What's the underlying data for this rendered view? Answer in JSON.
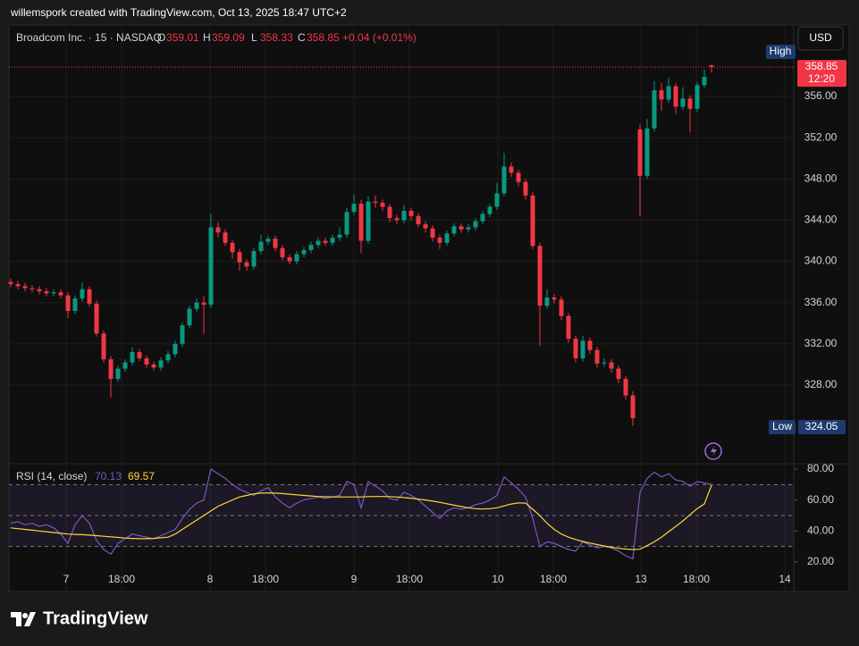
{
  "header": {
    "credit": "willemspork created with TradingView.com, Oct 13, 2025 18:47 UTC+2"
  },
  "footer": {
    "brand": "TradingView"
  },
  "chart_data": [
    {
      "type": "candlestick",
      "title": "Broadcom Inc. · 15 · NASDAQ",
      "ohlc_labels": [
        "O",
        "H",
        "L",
        "C"
      ],
      "change": "+0.04 (+0.01%)",
      "currency": "USD",
      "price_tag_time": "12:20",
      "high_label": "High",
      "low_label": "Low",
      "colors": {
        "up": "#089981",
        "down": "#f23645"
      },
      "grid": true,
      "xlim": [
        0,
        219.5
      ],
      "xticks": [
        {
          "value": 16,
          "label": "7"
        },
        {
          "value": 31.5,
          "label": "18:00"
        },
        {
          "value": 56.25,
          "label": "8"
        },
        {
          "value": 71.75,
          "label": "18:00"
        },
        {
          "value": 96.5,
          "label": "9"
        },
        {
          "value": 112,
          "label": "18:00"
        },
        {
          "value": 136.75,
          "label": "10"
        },
        {
          "value": 152.25,
          "label": "18:00"
        },
        {
          "value": 176.75,
          "label": "13"
        },
        {
          "value": 192.25,
          "label": "18:00"
        },
        {
          "value": 217,
          "label": "14"
        }
      ],
      "ylim": [
        320.46,
        362.93
      ],
      "yticks": [
        {
          "value": 328,
          "label": "328.00"
        },
        {
          "value": 332,
          "label": "332.00"
        },
        {
          "value": 336,
          "label": "336.00"
        },
        {
          "value": 340,
          "label": "340.00"
        },
        {
          "value": 344,
          "label": "344.00"
        },
        {
          "value": 348,
          "label": "348.00"
        },
        {
          "value": 352,
          "label": "352.00"
        },
        {
          "value": 356,
          "label": "356.00"
        }
      ],
      "x": [
        0.5,
        2.5,
        4.5,
        6.5,
        8.5,
        10.5,
        12.5,
        14.5,
        16.5,
        18.5,
        20.5,
        22.5,
        24.5,
        26.5,
        28.5,
        30.5,
        32.5,
        34.5,
        36.5,
        38.5,
        40.5,
        42.5,
        44.5,
        46.5,
        48.5,
        50.5,
        52.5,
        54.5,
        56.5,
        58.5,
        60.5,
        62.5,
        64.5,
        66.5,
        68.5,
        70.5,
        72.5,
        74.5,
        76.5,
        78.5,
        80.5,
        82.5,
        84.5,
        86.5,
        88.5,
        90.5,
        92.5,
        94.5,
        96.5,
        98.5,
        100.5,
        102.5,
        104.5,
        106.5,
        108.5,
        110.5,
        112.5,
        114.5,
        116.5,
        118.5,
        120.5,
        122.5,
        124.5,
        126.5,
        128.5,
        130.5,
        132.5,
        134.5,
        136.5,
        138.5,
        140.5,
        142.5,
        144.5,
        146.5,
        148.5,
        150.5,
        152.5,
        154.5,
        156.5,
        158.5,
        160.5,
        162.5,
        164.5,
        166.5,
        168.5,
        170.5,
        172.5,
        174.5,
        176.5,
        178.5,
        180.5,
        182.5,
        184.5,
        186.5,
        188.5,
        190.5,
        192.5,
        194.5,
        196.5
      ],
      "candles": [
        [
          338.0,
          338.3,
          337.5,
          337.8
        ],
        [
          337.8,
          338.1,
          337.3,
          337.6
        ],
        [
          337.6,
          337.9,
          337.1,
          337.4
        ],
        [
          337.4,
          337.7,
          337.0,
          337.3
        ],
        [
          337.3,
          337.6,
          336.8,
          337.1
        ],
        [
          337.1,
          337.4,
          336.6,
          336.9
        ],
        [
          336.9,
          337.3,
          336.6,
          337.0
        ],
        [
          337.0,
          337.3,
          336.4,
          336.7
        ],
        [
          336.7,
          337.0,
          334.5,
          335.2
        ],
        [
          335.2,
          336.7,
          334.9,
          336.4
        ],
        [
          336.4,
          338.0,
          336.1,
          337.3
        ],
        [
          337.3,
          337.6,
          335.6,
          335.9
        ],
        [
          335.9,
          336.2,
          332.7,
          333.0
        ],
        [
          333.0,
          333.3,
          330.2,
          330.5
        ],
        [
          330.5,
          330.8,
          326.8,
          328.6
        ],
        [
          328.6,
          329.9,
          328.3,
          329.6
        ],
        [
          329.6,
          330.5,
          329.3,
          330.2
        ],
        [
          330.2,
          331.7,
          329.9,
          331.2
        ],
        [
          331.2,
          331.5,
          330.3,
          330.6
        ],
        [
          330.6,
          330.9,
          329.7,
          330.0
        ],
        [
          330.0,
          330.3,
          329.4,
          329.7
        ],
        [
          329.7,
          330.7,
          329.4,
          330.4
        ],
        [
          330.4,
          331.3,
          330.1,
          331.0
        ],
        [
          331.0,
          332.3,
          330.7,
          332.0
        ],
        [
          332.0,
          334.1,
          331.7,
          333.8
        ],
        [
          333.8,
          335.7,
          333.5,
          335.4
        ],
        [
          335.4,
          336.4,
          335.1,
          336.0
        ],
        [
          336.0,
          336.6,
          333.0,
          335.8
        ],
        [
          335.8,
          344.6,
          335.5,
          343.3
        ],
        [
          343.3,
          343.8,
          342.3,
          342.8
        ],
        [
          342.8,
          343.1,
          341.5,
          341.8
        ],
        [
          341.8,
          342.1,
          340.3,
          340.9
        ],
        [
          340.9,
          341.2,
          339.1,
          339.9
        ],
        [
          339.9,
          340.2,
          339.1,
          339.5
        ],
        [
          339.5,
          341.3,
          339.2,
          341.0
        ],
        [
          341.0,
          342.6,
          340.7,
          341.9
        ],
        [
          341.9,
          342.5,
          341.6,
          342.2
        ],
        [
          342.2,
          342.5,
          341.0,
          341.3
        ],
        [
          341.3,
          341.6,
          340.1,
          340.4
        ],
        [
          340.4,
          340.7,
          339.7,
          340.0
        ],
        [
          340.0,
          341.0,
          339.7,
          340.7
        ],
        [
          340.7,
          341.4,
          340.4,
          341.1
        ],
        [
          341.1,
          341.9,
          340.8,
          341.6
        ],
        [
          341.6,
          342.3,
          341.3,
          342.0
        ],
        [
          342.0,
          342.3,
          341.5,
          341.8
        ],
        [
          341.8,
          342.6,
          341.5,
          342.3
        ],
        [
          342.3,
          343.3,
          342.0,
          342.6
        ],
        [
          342.6,
          345.2,
          342.3,
          344.8
        ],
        [
          344.8,
          346.5,
          344.5,
          345.6
        ],
        [
          345.6,
          346.0,
          340.8,
          342.0
        ],
        [
          342.0,
          346.3,
          341.7,
          345.8
        ],
        [
          345.8,
          346.4,
          345.2,
          345.7
        ],
        [
          345.7,
          346.0,
          344.9,
          345.3
        ],
        [
          345.3,
          345.6,
          343.8,
          344.2
        ],
        [
          344.2,
          344.5,
          343.6,
          344.0
        ],
        [
          344.0,
          345.5,
          343.7,
          344.9
        ],
        [
          344.9,
          345.2,
          344.0,
          344.4
        ],
        [
          344.4,
          344.7,
          343.3,
          343.6
        ],
        [
          343.6,
          343.9,
          342.8,
          343.2
        ],
        [
          343.2,
          343.5,
          341.9,
          342.3
        ],
        [
          342.3,
          342.6,
          341.2,
          341.8
        ],
        [
          341.8,
          343.0,
          341.5,
          342.7
        ],
        [
          342.7,
          343.7,
          342.4,
          343.4
        ],
        [
          343.4,
          343.7,
          342.8,
          343.1
        ],
        [
          343.1,
          343.6,
          342.8,
          343.3
        ],
        [
          343.3,
          344.2,
          343.0,
          343.9
        ],
        [
          343.9,
          344.9,
          343.6,
          344.6
        ],
        [
          344.6,
          345.6,
          344.3,
          345.3
        ],
        [
          345.3,
          347.6,
          345.0,
          346.6
        ],
        [
          346.6,
          350.5,
          346.3,
          349.2
        ],
        [
          349.2,
          349.6,
          348.2,
          348.6
        ],
        [
          348.6,
          348.9,
          347.3,
          347.7
        ],
        [
          347.7,
          348.0,
          346.0,
          346.4
        ],
        [
          346.4,
          346.7,
          341.2,
          341.5
        ],
        [
          341.5,
          341.8,
          331.8,
          335.7
        ],
        [
          335.7,
          337.3,
          335.4,
          336.5
        ],
        [
          336.5,
          336.8,
          335.9,
          336.3
        ],
        [
          336.3,
          336.6,
          334.3,
          334.7
        ],
        [
          334.7,
          335.0,
          332.1,
          332.5
        ],
        [
          332.5,
          332.8,
          330.2,
          330.6
        ],
        [
          330.6,
          332.8,
          330.3,
          332.3
        ],
        [
          332.3,
          332.6,
          331.0,
          331.4
        ],
        [
          331.4,
          331.7,
          329.7,
          330.1
        ],
        [
          330.1,
          330.6,
          329.8,
          330.2
        ],
        [
          330.2,
          330.5,
          329.2,
          329.6
        ],
        [
          329.6,
          329.9,
          328.2,
          328.6
        ],
        [
          328.6,
          328.9,
          326.6,
          327.0
        ],
        [
          327.0,
          327.4,
          324.05,
          324.8
        ],
        [
          352.8,
          353.3,
          344.4,
          348.3
        ],
        [
          348.3,
          353.8,
          348.0,
          352.9
        ],
        [
          352.9,
          357.5,
          352.6,
          356.6
        ],
        [
          356.6,
          357.3,
          354.6,
          355.7
        ],
        [
          355.7,
          357.8,
          355.4,
          357.0
        ],
        [
          357.0,
          357.3,
          354.3,
          355.0
        ],
        [
          355.0,
          356.9,
          354.7,
          355.8
        ],
        [
          355.8,
          356.1,
          352.5,
          354.8
        ],
        [
          354.8,
          357.4,
          354.5,
          357.1
        ],
        [
          357.1,
          358.6,
          356.8,
          357.9
        ],
        [
          359.01,
          359.09,
          358.33,
          358.85
        ]
      ]
    },
    {
      "type": "line",
      "title": "RSI (14, close)",
      "grid": true,
      "levels": [
        30,
        50,
        70
      ],
      "ylim": [
        0.87,
        83.48
      ],
      "yticks": [
        {
          "value": 20,
          "label": "20.00"
        },
        {
          "value": 40,
          "label": "40.00"
        },
        {
          "value": 60,
          "label": "60.00"
        },
        {
          "value": 80,
          "label": "80.00"
        }
      ],
      "series": [
        {
          "color": "#7e57c2",
          "values": [
            45,
            46,
            44,
            45,
            43,
            44,
            42,
            38,
            32,
            44,
            50,
            45,
            34,
            28,
            25,
            32,
            35,
            38,
            37,
            36,
            35,
            37,
            39,
            41,
            48,
            54,
            58,
            60,
            80,
            77,
            74,
            70,
            67,
            65,
            63,
            66,
            68,
            62,
            58,
            55,
            58,
            60,
            61,
            62,
            61,
            62,
            63,
            72,
            70,
            55,
            72,
            69,
            66,
            61,
            60,
            65,
            63,
            60,
            56,
            52,
            48,
            53,
            55,
            54,
            55,
            57,
            58,
            60,
            63,
            75,
            71,
            67,
            62,
            48,
            30,
            33,
            32,
            30,
            28,
            27,
            33,
            31,
            29,
            30,
            29,
            27,
            24,
            22,
            65,
            74,
            78,
            75,
            77,
            73,
            72,
            69,
            72,
            71,
            70.13
          ]
        },
        {
          "color": "#fdd835",
          "values": [
            42,
            41.5,
            41,
            40.5,
            40,
            39.5,
            39,
            38.5,
            38,
            37.8,
            37.6,
            37.3,
            37,
            36.6,
            36.2,
            35.8,
            35.4,
            35.2,
            35,
            35,
            35.2,
            35.6,
            36,
            38,
            41,
            44,
            47,
            50,
            53,
            56,
            58,
            60,
            62,
            63,
            64,
            64.5,
            64.6,
            64.5,
            64.2,
            63.8,
            63.4,
            63,
            62.6,
            62.3,
            62.1,
            62,
            62,
            62,
            62,
            62,
            62.2,
            62.3,
            62.3,
            62.2,
            62,
            61.6,
            61.2,
            60.6,
            60,
            59.3,
            58.5,
            57.6,
            56.7,
            55.8,
            55,
            54.4,
            54.2,
            54.4,
            55,
            56.2,
            57.4,
            58.2,
            58,
            54,
            50,
            45,
            41,
            38,
            36,
            34.5,
            33.2,
            32.2,
            31.2,
            30.3,
            29.5,
            28.8,
            28.3,
            28,
            28.2,
            30.5,
            33,
            36,
            39.5,
            43,
            46.5,
            50.5,
            54.5,
            57.5,
            69.57
          ]
        }
      ]
    }
  ]
}
